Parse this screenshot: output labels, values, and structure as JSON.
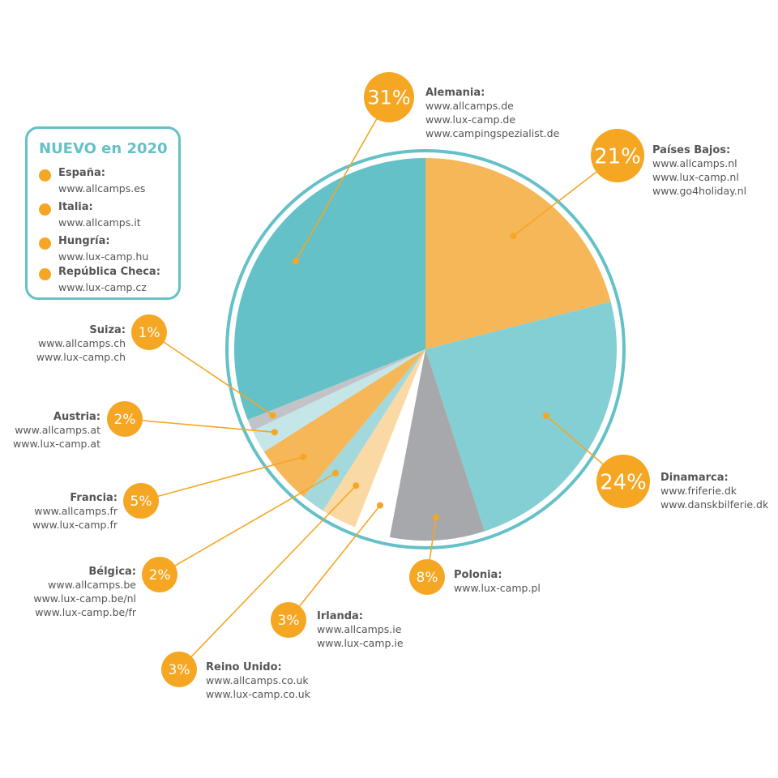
{
  "chart_data": {
    "type": "pie",
    "start_angle_deg": 90,
    "direction": "clockwise",
    "slices": [
      {
        "country": "Países Bajos",
        "value": 21,
        "label": "21%",
        "color": "#f5b758",
        "urls": [
          "www.allcamps.nl",
          "www.lux-camp.nl",
          "www.go4holiday.nl"
        ]
      },
      {
        "country": "Dinamarca",
        "value": 24,
        "label": "24%",
        "color": "#84cfd4",
        "urls": [
          "www.friferie.dk",
          "www.danskbilferie.dk"
        ]
      },
      {
        "country": "Polonia",
        "value": 8,
        "label": "8%",
        "color": "#a7a8ac",
        "urls": [
          "www.lux-camp.pl"
        ]
      },
      {
        "country": "Irlanda",
        "value": 3,
        "label": "3%",
        "color": "#ffffff",
        "urls": [
          "www.allcamps.ie",
          "www.lux-camp.ie"
        ]
      },
      {
        "country": "Reino Unido",
        "value": 3,
        "label": "3%",
        "color": "#fbd9a5",
        "urls": [
          "www.allcamps.co.uk",
          "www.lux-camp.co.uk"
        ]
      },
      {
        "country": "Bélgica",
        "value": 2,
        "label": "2%",
        "color": "#a3d9dc",
        "urls": [
          "www.allcamps.be",
          "www.lux-camp.be/nl",
          "www.lux-camp.be/fr"
        ]
      },
      {
        "country": "Francia",
        "value": 5,
        "label": "5%",
        "color": "#f5b758",
        "urls": [
          "www.allcamps.fr",
          "www.lux-camp.fr"
        ]
      },
      {
        "country": "Austria",
        "value": 2,
        "label": "2%",
        "color": "#c4e6e8",
        "urls": [
          "www.allcamps.at",
          "www.lux-camp.at"
        ]
      },
      {
        "country": "Suiza",
        "value": 1,
        "label": "1%",
        "color": "#c2c3c6",
        "urls": [
          "www.allcamps.ch",
          "www.lux-camp.ch"
        ]
      },
      {
        "country": "Alemania",
        "value": 31,
        "label": "31%",
        "color": "#63c1c7",
        "urls": [
          "www.allcamps.de",
          "www.lux-camp.de",
          "www.campingspezialist.de"
        ]
      }
    ]
  },
  "legend": {
    "title": "NUEVO en 2020",
    "items": [
      {
        "name": "España:",
        "url": "www.allcamps.es"
      },
      {
        "name": "Italia:",
        "url": "www.allcamps.it"
      },
      {
        "name": "Hungría:",
        "url": "www.lux-camp.hu"
      },
      {
        "name": "República Checa:",
        "url": "www.lux-camp.cz"
      }
    ]
  },
  "colors": {
    "accent_orange": "#f5a623",
    "ring": "#63c1c7",
    "text": "#555555"
  }
}
